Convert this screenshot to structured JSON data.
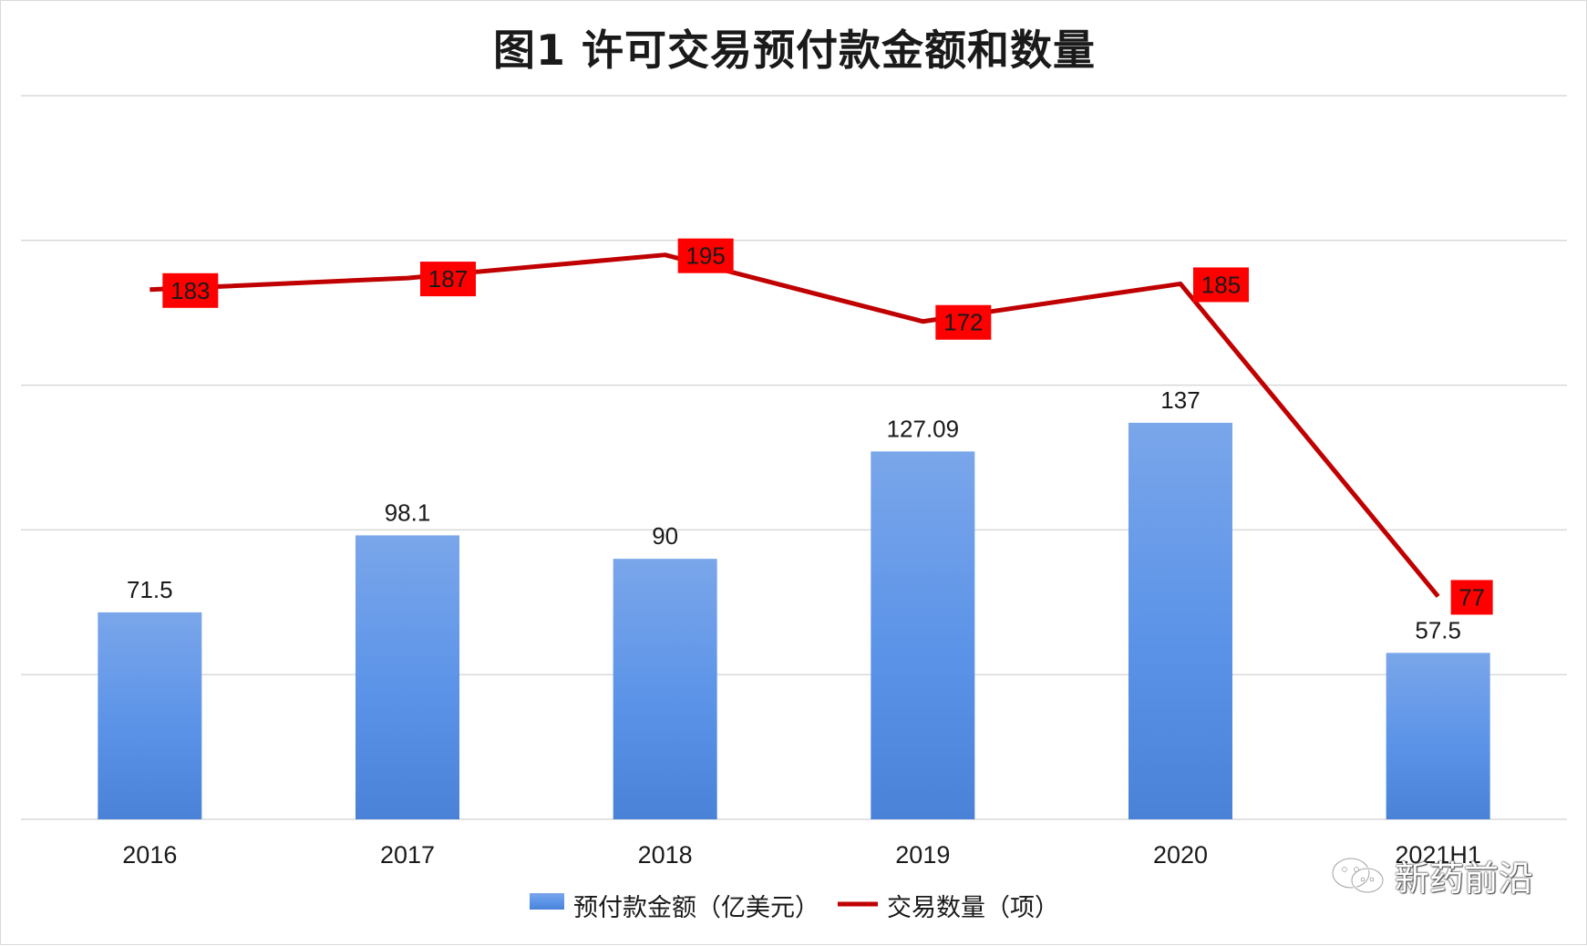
{
  "title": "图1 许可交易预付款金额和数量",
  "watermark": {
    "text": "新药前沿",
    "icon": "wechat-icon"
  },
  "chart_data": {
    "type": "bar",
    "title": "图1 许可交易预付款金额和数量",
    "categories": [
      "2016",
      "2017",
      "2018",
      "2019",
      "2020",
      "2021H1"
    ],
    "grid": true,
    "legend_position": "bottom",
    "series": [
      {
        "name": "预付款金额（亿美元）",
        "type": "bar",
        "axis": "left",
        "color": "#5b8fe0",
        "values": [
          71.5,
          98.1,
          90,
          127.09,
          137,
          57.5
        ],
        "labels": [
          "71.5",
          "98.1",
          "90",
          "127.09",
          "137",
          "57.5"
        ]
      },
      {
        "name": "交易数量（项）",
        "type": "line",
        "axis": "right",
        "color": "#c00000",
        "label_bg": "#ff0000",
        "values": [
          183,
          187,
          195,
          172,
          185,
          77
        ],
        "labels": [
          "183",
          "187",
          "195",
          "172",
          "185",
          "77"
        ]
      }
    ],
    "y_left_range": [
      0,
      250
    ],
    "y_right_range": [
      0,
      250
    ]
  }
}
